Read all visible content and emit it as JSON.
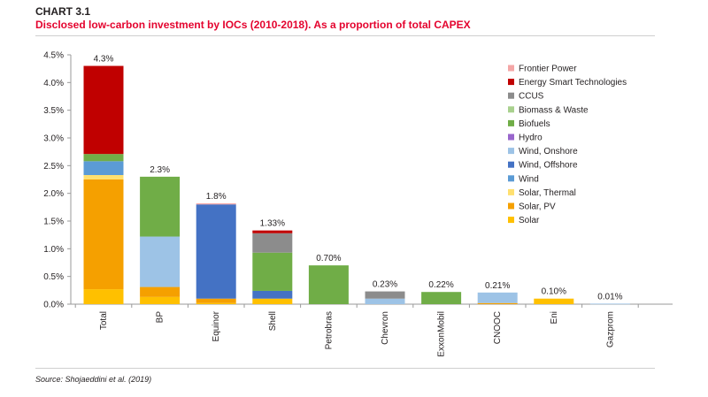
{
  "header": {
    "label": "CHART 3.1",
    "title": "Disclosed low-carbon investment by IOCs (2010-2018). As a proportion of total CAPEX"
  },
  "source": "Source: Shojaeddini et al. (2019)",
  "chart_data": {
    "type": "bar",
    "stacked": true,
    "categories": [
      "Total",
      "BP",
      "Equinor",
      "Shell",
      "Petrobras",
      "Chevron",
      "ExxonMobil",
      "CNOOC",
      "Eni",
      "Gazprom"
    ],
    "totals_labels": [
      "4.3%",
      "2.3%",
      "1.8%",
      "1.33%",
      "0.70%",
      "0.23%",
      "0.22%",
      "0.21%",
      "0.10%",
      "0.01%"
    ],
    "y_ticks": [
      "0.0%",
      "0.5%",
      "1.0%",
      "1.5%",
      "2.0%",
      "2.5%",
      "3.0%",
      "3.5%",
      "4.0%",
      "4.5%"
    ],
    "ylim": [
      0,
      4.5
    ],
    "grid": false,
    "legend_position": "right",
    "series": [
      {
        "name": "Solar",
        "color": "#ffc000",
        "values": [
          0.27,
          0.13,
          0.02,
          0.1,
          0,
          0,
          0,
          0,
          0.1,
          0
        ]
      },
      {
        "name": "Solar, PV",
        "color": "#f5a000",
        "values": [
          1.98,
          0.18,
          0.08,
          0,
          0,
          0,
          0,
          0.02,
          0,
          0
        ]
      },
      {
        "name": "Solar, Thermal",
        "color": "#ffe070",
        "values": [
          0.08,
          0,
          0,
          0,
          0,
          0,
          0,
          0,
          0,
          0
        ]
      },
      {
        "name": "Wind",
        "color": "#5b9bd5",
        "values": [
          0.25,
          0,
          0,
          0,
          0,
          0,
          0,
          0,
          0,
          0
        ]
      },
      {
        "name": "Wind, Offshore",
        "color": "#4472c4",
        "values": [
          0,
          0,
          1.7,
          0.14,
          0,
          0,
          0,
          0,
          0,
          0
        ]
      },
      {
        "name": "Wind, Onshore",
        "color": "#9dc3e6",
        "values": [
          0,
          0.91,
          0,
          0,
          0,
          0.1,
          0,
          0.19,
          0,
          0.01
        ]
      },
      {
        "name": "Hydro",
        "color": "#9966cc",
        "values": [
          0,
          0,
          0,
          0,
          0,
          0,
          0,
          0,
          0,
          0
        ]
      },
      {
        "name": "Biofuels",
        "color": "#70ad47",
        "values": [
          0.13,
          1.08,
          0,
          0.69,
          0.7,
          0,
          0.22,
          0,
          0,
          0
        ]
      },
      {
        "name": "Biomass & Waste",
        "color": "#a9d18e",
        "values": [
          0,
          0,
          0,
          0,
          0,
          0,
          0,
          0,
          0,
          0
        ]
      },
      {
        "name": "CCUS",
        "color": "#8c8c8c",
        "values": [
          0,
          0,
          0,
          0.35,
          0,
          0.13,
          0,
          0,
          0,
          0
        ]
      },
      {
        "name": "Energy Smart Technologies",
        "color": "#c00000",
        "values": [
          1.59,
          0,
          0,
          0.05,
          0,
          0,
          0,
          0,
          0,
          0
        ]
      },
      {
        "name": "Frontier Power",
        "color": "#f4a6a6",
        "values": [
          0,
          0,
          0.02,
          0,
          0,
          0,
          0,
          0,
          0,
          0
        ]
      }
    ]
  }
}
